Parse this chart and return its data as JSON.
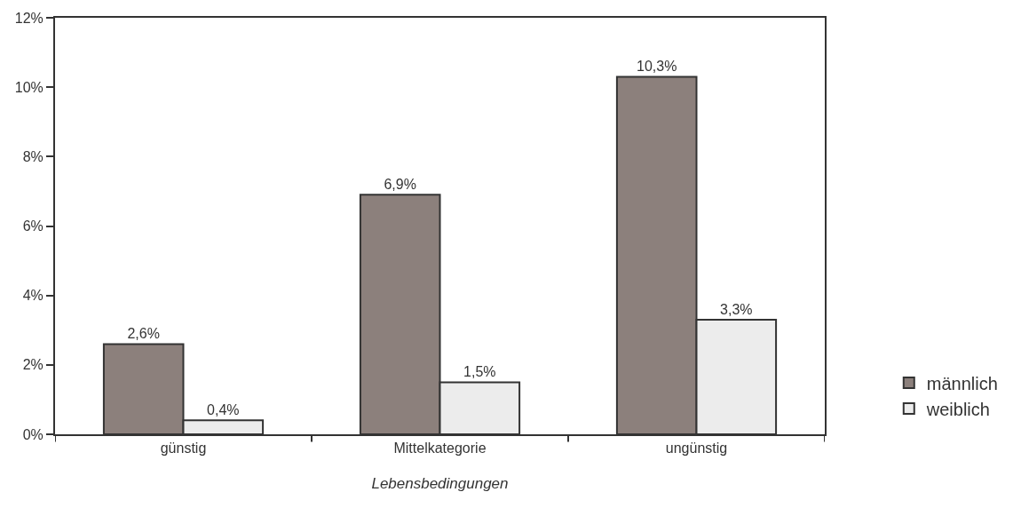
{
  "chart_data": {
    "type": "bar",
    "xlabel": "Lebensbedingungen",
    "categories": [
      "günstig",
      "Mittelkategorie",
      "ungünstig"
    ],
    "series": [
      {
        "name": "männlich",
        "color": "#8c807c",
        "values": [
          2.6,
          6.9,
          10.3
        ],
        "value_labels": [
          "2,6%",
          "6,9%",
          "10,3%"
        ]
      },
      {
        "name": "weiblich",
        "color": "#ececec",
        "values": [
          0.4,
          1.5,
          3.3
        ],
        "value_labels": [
          "0,4%",
          "1,5%",
          "3,3%"
        ]
      }
    ],
    "ylim": [
      0,
      12
    ],
    "yticks": [
      {
        "value": 0,
        "label": "0%"
      },
      {
        "value": 2,
        "label": "2%"
      },
      {
        "value": 4,
        "label": "4%"
      },
      {
        "value": 6,
        "label": "6%"
      },
      {
        "value": 8,
        "label": "8%"
      },
      {
        "value": 10,
        "label": "10%"
      },
      {
        "value": 12,
        "label": "12%"
      }
    ],
    "legend": "bottom right"
  }
}
